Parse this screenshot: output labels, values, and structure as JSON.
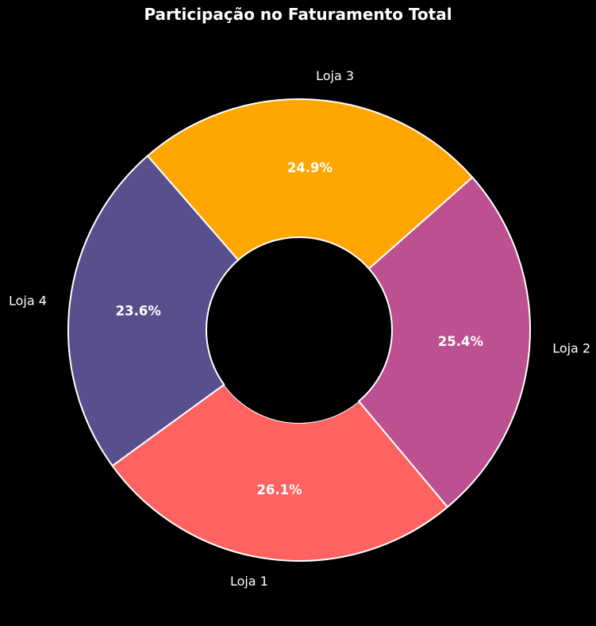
{
  "chart_data": {
    "type": "pie",
    "title": "Participação no Faturamento Total",
    "donut": true,
    "start_angle_deg": 216,
    "direction": "counterclockwise",
    "background": "#000000",
    "edge_color": "#ffffff",
    "categories": [
      "Loja 1",
      "Loja 2",
      "Loja 3",
      "Loja 4"
    ],
    "values": [
      26.1,
      25.4,
      24.9,
      23.6
    ],
    "percent_labels": [
      "26.1%",
      "25.4%",
      "24.9%",
      "23.6%"
    ],
    "colors": [
      "#ff6361",
      "#bc5090",
      "#ffa600",
      "#58508d"
    ],
    "legend": "none"
  }
}
